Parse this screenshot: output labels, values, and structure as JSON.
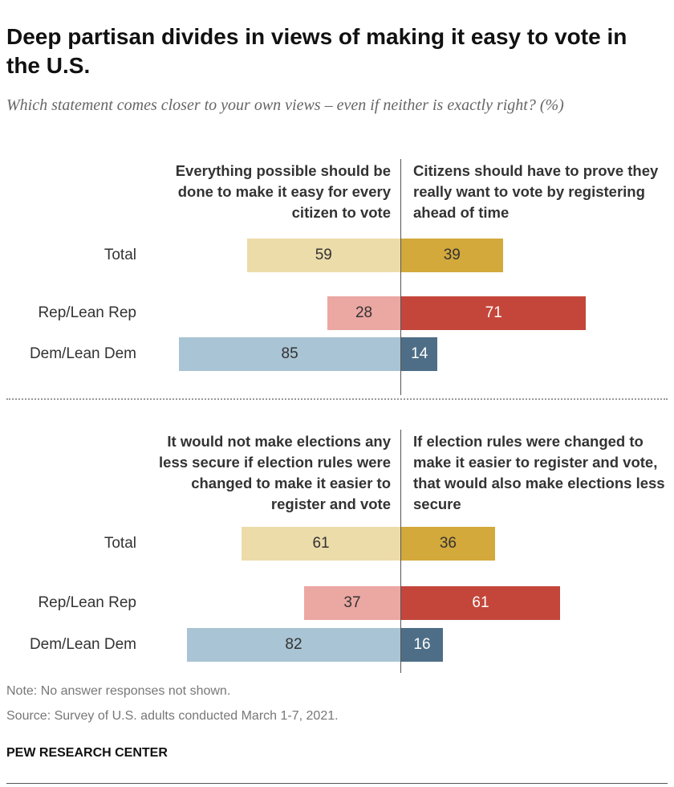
{
  "title": "Deep partisan divides in views of making it easy to vote in the U.S.",
  "subtitle": "Which statement comes closer to your own views – even if neither is exactly right? (%)",
  "note": "Note: No answer responses not shown.",
  "source": "Source: Survey of U.S. adults conducted March 1-7, 2021.",
  "brand": "PEW RESEARCH CENTER",
  "chart_data": [
    {
      "type": "diverging_bar",
      "categories": [
        "Total",
        "Rep/Lean Rep",
        "Dem/Lean Dem"
      ],
      "series": [
        {
          "name": "Everything possible should be done to make it easy for every citizen to vote",
          "side": "left",
          "colors": [
            "#ecdcaa",
            "#eba7a2",
            "#a9c4d4"
          ],
          "label_colors": [
            "#333333",
            "#333333",
            "#333333"
          ],
          "values": [
            59,
            28,
            85
          ]
        },
        {
          "name": "Citizens should have to prove they really want to vote by registering ahead of time",
          "side": "right",
          "colors": [
            "#d3a93c",
            "#c4463a",
            "#4e6e87"
          ],
          "label_colors": [
            "#333333",
            "#ffffff",
            "#ffffff"
          ],
          "values": [
            39,
            71,
            14
          ]
        }
      ]
    },
    {
      "type": "diverging_bar",
      "categories": [
        "Total",
        "Rep/Lean Rep",
        "Dem/Lean Dem"
      ],
      "series": [
        {
          "name": "It would not make elections any less secure if election rules were changed to make it easier to register and vote",
          "side": "left",
          "colors": [
            "#ecdcaa",
            "#eba7a2",
            "#a9c4d4"
          ],
          "label_colors": [
            "#333333",
            "#333333",
            "#333333"
          ],
          "values": [
            61,
            37,
            82
          ]
        },
        {
          "name": "If election rules were changed to make it easier to register and vote, that would also make elections less secure",
          "side": "right",
          "colors": [
            "#d3a93c",
            "#c4463a",
            "#4e6e87"
          ],
          "label_colors": [
            "#333333",
            "#ffffff",
            "#ffffff"
          ],
          "values": [
            36,
            61,
            16
          ]
        }
      ]
    }
  ]
}
